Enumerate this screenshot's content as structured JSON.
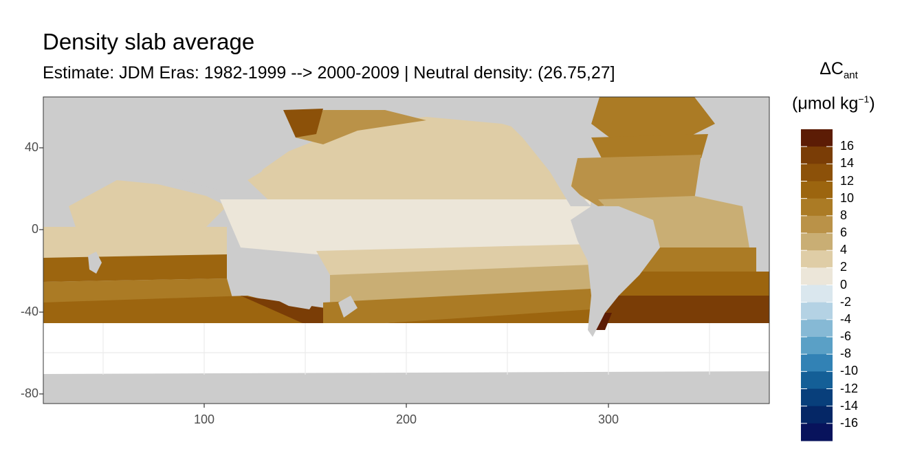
{
  "title": "Density slab average",
  "subtitle": "Estimate: JDM Eras: 1982-1999 --> 2000-2009 | Neutral density: (26.75,27]",
  "legend": {
    "title_symbol": "ΔC",
    "title_subscript": "ant",
    "unit_prefix": "(μmol kg",
    "unit_exponent": "−1",
    "unit_suffix": ")",
    "labels": [
      "16",
      "14",
      "12",
      "10",
      "8",
      "6",
      "4",
      "2",
      "0",
      "-2",
      "-4",
      "-6",
      "-8",
      "-10",
      "-12",
      "-14",
      "-16"
    ],
    "colors": [
      "#5c1c05",
      "#7a3d06",
      "#8c5109",
      "#9c650f",
      "#ab7b25",
      "#ba9248",
      "#c9ae74",
      "#dfcda6",
      "#ece6d9",
      "#dae7ee",
      "#b4d2e4",
      "#86b9d5",
      "#5aa0c6",
      "#3282b5",
      "#145f97",
      "#083f7b",
      "#052766",
      "#08135c"
    ]
  },
  "chart_data": {
    "type": "heatmap",
    "title": "Density slab average",
    "subtitle": "Estimate: JDM Eras: 1982-1999 --> 2000-2009 | Neutral density: (26.75,27]",
    "xlim": [
      20,
      380
    ],
    "ylim": [
      -85,
      65
    ],
    "x_ticks": [
      "100",
      "200",
      "300"
    ],
    "y_ticks": [
      "40",
      "0",
      "-40",
      "-80"
    ],
    "land_color": "#cccccc",
    "panel_background": "#ffffff",
    "grid": true
  }
}
